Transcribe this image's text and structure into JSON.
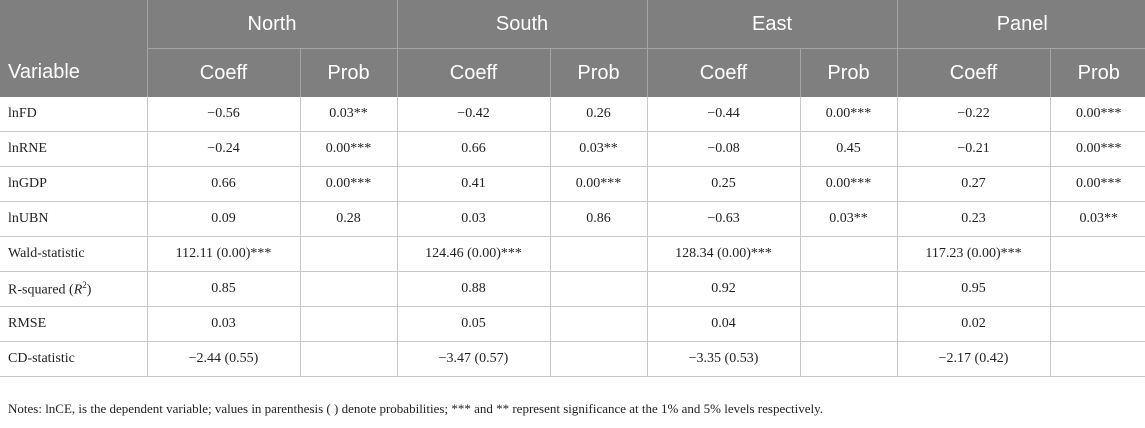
{
  "header": {
    "regions": [
      "North",
      "South",
      "East",
      "Panel"
    ],
    "variable_label": "Variable",
    "coeff_label": "Coeff",
    "prob_label": "Prob"
  },
  "rows": [
    {
      "label": "lnFD",
      "cells": [
        "−0.56",
        "0.03**",
        "−0.42",
        "0.26",
        "−0.44",
        "0.00***",
        "−0.22",
        "0.00***"
      ]
    },
    {
      "label": "lnRNE",
      "cells": [
        "−0.24",
        "0.00***",
        "0.66",
        "0.03**",
        "−0.08",
        "0.45",
        "−0.21",
        "0.00***"
      ]
    },
    {
      "label": "lnGDP",
      "cells": [
        "0.66",
        "0.00***",
        "0.41",
        "0.00***",
        "0.25",
        "0.00***",
        "0.27",
        "0.00***"
      ]
    },
    {
      "label": "lnUBN",
      "cells": [
        "0.09",
        "0.28",
        "0.03",
        "0.86",
        "−0.63",
        "0.03**",
        "0.23",
        "0.03**"
      ]
    },
    {
      "label": "Wald-statistic",
      "cells": [
        "112.11 (0.00)***",
        "",
        "124.46 (0.00)***",
        "",
        "128.34 (0.00)***",
        "",
        "117.23 (0.00)***",
        ""
      ]
    },
    {
      "label_pre": "R-squared (",
      "label_italic": "R",
      "label_sup": "2",
      "label_post": ")",
      "cells": [
        "0.85",
        "",
        "0.88",
        "",
        "0.92",
        "",
        "0.95",
        ""
      ]
    },
    {
      "label": "RMSE",
      "cells": [
        "0.03",
        "",
        "0.05",
        "",
        "0.04",
        "",
        "0.02",
        ""
      ]
    },
    {
      "label": "CD-statistic",
      "cells": [
        "−2.44 (0.55)",
        "",
        "−3.47 (0.57)",
        "",
        "−3.35 (0.53)",
        "",
        "−2.17 (0.42)",
        ""
      ]
    }
  ],
  "notes": "Notes: lnCE, is the dependent variable; values in parenthesis ( ) denote probabilities; *** and ** represent significance at the 1% and 5% levels respectively."
}
